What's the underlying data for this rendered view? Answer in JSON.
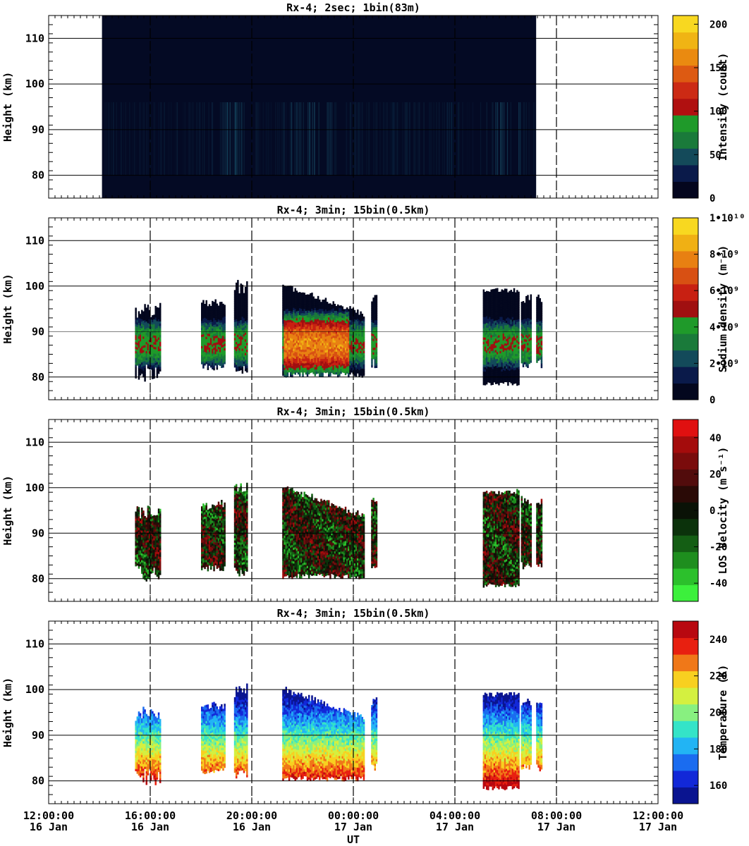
{
  "chart_data": [
    {
      "type": "heatmap",
      "title": "Rx-4;  2sec; 1bin(83m)",
      "ylabel": "Height (km)",
      "ylim": [
        75,
        115
      ],
      "yticks": [
        80,
        90,
        100,
        110
      ],
      "xlim_hours": [
        12,
        36
      ],
      "x_tick_hours": [
        12,
        16,
        20,
        24,
        28,
        32,
        36
      ],
      "colorbar": {
        "label": "Intensity (count)",
        "range": [
          0,
          210
        ],
        "ticks": [
          "0",
          "50",
          "100",
          "150",
          "200"
        ],
        "tick_values": [
          0,
          50,
          100,
          150,
          200
        ],
        "colors": [
          "#04061e",
          "#0a1a4a",
          "#144a5a",
          "#1a7a3a",
          "#1f9a2a",
          "#b01010",
          "#cc2a14",
          "#dd5a12",
          "#ea8a10",
          "#f0b414",
          "#f8d820"
        ]
      },
      "data_window_hours": [
        14.1,
        31.2
      ],
      "background": "#040a24"
    },
    {
      "type": "heatmap",
      "title": "Rx-4; 3min; 15bin(0.5km)",
      "ylabel": "Height (km)",
      "ylim": [
        75,
        115
      ],
      "yticks": [
        80,
        90,
        100,
        110
      ],
      "xlim_hours": [
        12,
        36
      ],
      "x_tick_hours": [
        12,
        16,
        20,
        24,
        28,
        32,
        36
      ],
      "colorbar": {
        "label": "Sodium density (m⁻³)",
        "range": [
          0,
          10000000000.0
        ],
        "ticks": [
          "0",
          "2•10⁹",
          "4•10⁹",
          "6•10⁹",
          "8•10⁹",
          "1•10¹⁰"
        ],
        "tick_values": [
          0,
          2000000000.0,
          4000000000.0,
          6000000000.0,
          8000000000.0,
          10000000000.0
        ],
        "colors": [
          "#03071e",
          "#0a1a4a",
          "#134a5a",
          "#1a7a3a",
          "#1f9a2a",
          "#a00f10",
          "#c82012",
          "#d85013",
          "#e88012",
          "#f0b014",
          "#f8d820"
        ]
      }
    },
    {
      "type": "heatmap",
      "title": "Rx-4; 3min; 15bin(0.5km)",
      "ylabel": "Height (km)",
      "ylim": [
        75,
        115
      ],
      "yticks": [
        80,
        90,
        100,
        110
      ],
      "xlim_hours": [
        12,
        36
      ],
      "x_tick_hours": [
        12,
        16,
        20,
        24,
        28,
        32,
        36
      ],
      "colorbar": {
        "label": "LOS Velocity (m s⁻¹)",
        "range": [
          -50,
          50
        ],
        "ticks": [
          "-40",
          "-20",
          "0",
          "20",
          "40"
        ],
        "tick_values": [
          -40,
          -20,
          0,
          20,
          40
        ],
        "colors": [
          "#3cf03c",
          "#2cc02c",
          "#1e8e1e",
          "#145e14",
          "#0b320b",
          "#0a1206",
          "#2a0a06",
          "#520c0c",
          "#7a0c0c",
          "#a40c0c",
          "#e01010"
        ]
      }
    },
    {
      "type": "heatmap",
      "title": "Rx-4; 3min; 15bin(0.5km)",
      "ylabel": "Height (km)",
      "xlabel": "UT",
      "ylim": [
        75,
        115
      ],
      "yticks": [
        80,
        90,
        100,
        110
      ],
      "xlim_hours": [
        12,
        36
      ],
      "x_tick_hours": [
        12,
        16,
        20,
        24,
        28,
        32,
        36
      ],
      "colorbar": {
        "label": "Temperature (K)",
        "range": [
          150,
          250
        ],
        "ticks": [
          "160",
          "180",
          "200",
          "220",
          "240"
        ],
        "tick_values": [
          160,
          180,
          200,
          220,
          240
        ],
        "colors": [
          "#0a1490",
          "#1228d8",
          "#1a6cf0",
          "#22b4f4",
          "#34e4c8",
          "#88f080",
          "#d4f040",
          "#f8d020",
          "#f07818",
          "#e82010",
          "#b80810"
        ]
      }
    }
  ],
  "x_tick_labels": [
    {
      "time": "12:00:00",
      "date": "16 Jan"
    },
    {
      "time": "16:00:00",
      "date": "16 Jan"
    },
    {
      "time": "20:00:00",
      "date": "16 Jan"
    },
    {
      "time": "00:00:00",
      "date": "17 Jan"
    },
    {
      "time": "04:00:00",
      "date": "17 Jan"
    },
    {
      "time": "08:00:00",
      "date": "17 Jan"
    },
    {
      "time": "12:00:00",
      "date": "17 Jan"
    }
  ],
  "observation_blocks_hours": [
    [
      15.4,
      16.4
    ],
    [
      18.0,
      18.9
    ],
    [
      19.3,
      19.8
    ],
    [
      21.2,
      24.4
    ],
    [
      24.2,
      24.4
    ],
    [
      24.7,
      24.9
    ],
    [
      29.1,
      30.5
    ],
    [
      30.6,
      31.0
    ],
    [
      31.2,
      31.4
    ]
  ]
}
